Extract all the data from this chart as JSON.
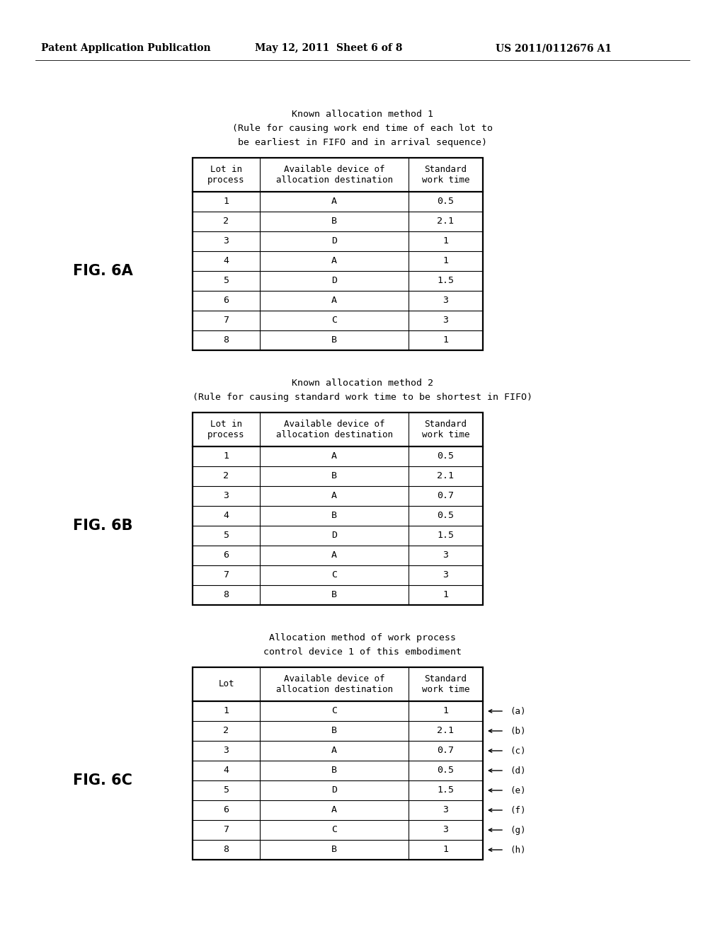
{
  "bg_color": "#ffffff",
  "fig6a_title": [
    "Known allocation method 1",
    "(Rule for causing work end time of each lot to",
    "be earliest in FIFO and in arrival sequence)"
  ],
  "fig6a_label": "FIG. 6A",
  "fig6a_col_headers": [
    "Lot in\nprocess",
    "Available device of\nallocation destination",
    "Standard\nwork time"
  ],
  "fig6a_data": [
    [
      "1",
      "A",
      "0.5"
    ],
    [
      "2",
      "B",
      "2.1"
    ],
    [
      "3",
      "D",
      "1"
    ],
    [
      "4",
      "A",
      "1"
    ],
    [
      "5",
      "D",
      "1.5"
    ],
    [
      "6",
      "A",
      "3"
    ],
    [
      "7",
      "C",
      "3"
    ],
    [
      "8",
      "B",
      "1"
    ]
  ],
  "fig6b_title": [
    "Known allocation method 2",
    "(Rule for causing standard work time to be shortest in FIFO)"
  ],
  "fig6b_label": "FIG. 6B",
  "fig6b_col_headers": [
    "Lot in\nprocess",
    "Available device of\nallocation destination",
    "Standard\nwork time"
  ],
  "fig6b_data": [
    [
      "1",
      "A",
      "0.5"
    ],
    [
      "2",
      "B",
      "2.1"
    ],
    [
      "3",
      "A",
      "0.7"
    ],
    [
      "4",
      "B",
      "0.5"
    ],
    [
      "5",
      "D",
      "1.5"
    ],
    [
      "6",
      "A",
      "3"
    ],
    [
      "7",
      "C",
      "3"
    ],
    [
      "8",
      "B",
      "1"
    ]
  ],
  "fig6c_title": [
    "Allocation method of work process",
    "control device 1 of this embodiment"
  ],
  "fig6c_label": "FIG. 6C",
  "fig6c_col_headers": [
    "Lot",
    "Available device of\nallocation destination",
    "Standard\nwork time"
  ],
  "fig6c_data": [
    [
      "1",
      "C",
      "1"
    ],
    [
      "2",
      "B",
      "2.1"
    ],
    [
      "3",
      "A",
      "0.7"
    ],
    [
      "4",
      "B",
      "0.5"
    ],
    [
      "5",
      "D",
      "1.5"
    ],
    [
      "6",
      "A",
      "3"
    ],
    [
      "7",
      "C",
      "3"
    ],
    [
      "8",
      "B",
      "1"
    ]
  ],
  "fig6c_arrows": [
    "(a)",
    "(b)",
    "(c)",
    "(d)",
    "(e)",
    "(f)",
    "(g)",
    "(h)"
  ],
  "header_parts": [
    "Patent Application Publication",
    "May 12, 2011  Sheet 6 of 8",
    "US 2011/0112676 A1"
  ]
}
